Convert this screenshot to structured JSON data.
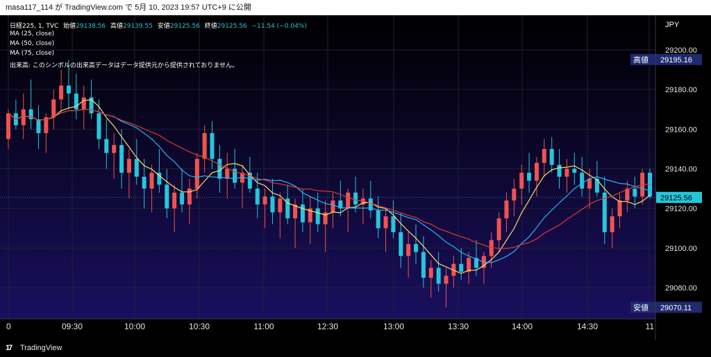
{
  "header": {
    "caption": "masa117_114 が TradingView.com で 5月 10, 2023 19:57 UTC+9 に公開"
  },
  "legend": {
    "symbol": "日経225, 1, TVC",
    "open_label": "始値",
    "open_value": "29138.56",
    "high_label": "高値",
    "high_value": "29139.55",
    "low_label": "安値",
    "low_value": "29125.56",
    "close_label": "終値",
    "close_value": "29125.56",
    "change": "−11.54 (−0.04%)",
    "ma1": "MA (25, close)",
    "ma2": "MA (50, close)",
    "ma3": "MA (75, close)",
    "volume_note": "出来高: このシンボルの出来高データはデータ提供元から提供されておりません。"
  },
  "price_scale": {
    "currency": "JPY",
    "ticks": [
      "29200.00",
      "29180.00",
      "29160.00",
      "29140.00",
      "29120.00",
      "29100.00",
      "29080.00"
    ],
    "high_label": "高値",
    "high_value": "29195.16",
    "low_label": "安値",
    "low_value": "29070.11",
    "last_value": "29125.56"
  },
  "time_scale": {
    "ticks": [
      "0",
      "09:30",
      "10:00",
      "10:30",
      "11:00",
      "12:30",
      "13:00",
      "13:30",
      "14:00",
      "14:30",
      "11"
    ]
  },
  "footer": {
    "brand": "TradingView"
  },
  "colors": {
    "up": "#ef5350",
    "down": "#26c6da",
    "bg_top": "#000000",
    "bg_bottom": "#1a0f5e",
    "ma25": "#ffe066",
    "ma50": "#29b6f6",
    "ma75": "#e53935",
    "text": "#ffffff",
    "last_price_bg": "#26c6da",
    "last_price_text": "#000000",
    "hl_bg": "#1e2a6e"
  },
  "chart_data": {
    "type": "candlestick",
    "instrument": "日経225, 1, TVC",
    "currency": "JPY",
    "ylim": [
      29065,
      29212
    ],
    "grid": true,
    "x_ticks": [
      "0",
      "09:30",
      "10:00",
      "10:30",
      "11:00",
      "12:30",
      "13:00",
      "13:30",
      "14:00",
      "14:30",
      "11"
    ],
    "last": {
      "open": 29138.56,
      "high": 29139.55,
      "low": 29125.56,
      "close": 29125.56,
      "change": -11.54,
      "change_pct": -0.04
    },
    "session_high": 29195.16,
    "session_low": 29070.11,
    "candles_ohlc_approx": [
      [
        29155,
        29170,
        29150,
        29168
      ],
      [
        29168,
        29175,
        29160,
        29162
      ],
      [
        29162,
        29178,
        29155,
        29170
      ],
      [
        29170,
        29185,
        29160,
        29165
      ],
      [
        29165,
        29172,
        29150,
        29158
      ],
      [
        29158,
        29168,
        29148,
        29166
      ],
      [
        29166,
        29180,
        29160,
        29175
      ],
      [
        29175,
        29190,
        29168,
        29182
      ],
      [
        29182,
        29195,
        29170,
        29178
      ],
      [
        29178,
        29188,
        29165,
        29170
      ],
      [
        29170,
        29182,
        29160,
        29176
      ],
      [
        29176,
        29185,
        29165,
        29168
      ],
      [
        29168,
        29175,
        29150,
        29155
      ],
      [
        29155,
        29165,
        29140,
        29148
      ],
      [
        29148,
        29158,
        29135,
        29152
      ],
      [
        29152,
        29160,
        29130,
        29138
      ],
      [
        29138,
        29150,
        29125,
        29145
      ],
      [
        29145,
        29155,
        29132,
        29136
      ],
      [
        29136,
        29145,
        29120,
        29130
      ],
      [
        29130,
        29142,
        29118,
        29138
      ],
      [
        29138,
        29150,
        29128,
        29132
      ],
      [
        29132,
        29140,
        29115,
        29120
      ],
      [
        29120,
        29132,
        29108,
        29128
      ],
      [
        29128,
        29140,
        29118,
        29122
      ],
      [
        29122,
        29135,
        29112,
        29130
      ],
      [
        29130,
        29148,
        29125,
        29145
      ],
      [
        29145,
        29162,
        29138,
        29158
      ],
      [
        29158,
        29164,
        29140,
        29145
      ],
      [
        29145,
        29152,
        29128,
        29135
      ],
      [
        29135,
        29148,
        29125,
        29140
      ],
      [
        29140,
        29150,
        29130,
        29133
      ],
      [
        29133,
        29142,
        29120,
        29138
      ],
      [
        29138,
        29146,
        29128,
        29130
      ],
      [
        29130,
        29138,
        29115,
        29122
      ],
      [
        29122,
        29130,
        29110,
        29126
      ],
      [
        29126,
        29135,
        29112,
        29118
      ],
      [
        29118,
        29128,
        29105,
        29125
      ],
      [
        29125,
        29132,
        29112,
        29115
      ],
      [
        29115,
        29125,
        29100,
        29122
      ],
      [
        29122,
        29130,
        29108,
        29113
      ],
      [
        29113,
        29126,
        29102,
        29120
      ],
      [
        29120,
        29128,
        29108,
        29112
      ],
      [
        29112,
        29124,
        29098,
        29118
      ],
      [
        29118,
        29128,
        29110,
        29124
      ],
      [
        29124,
        29134,
        29116,
        29120
      ],
      [
        29120,
        29130,
        29108,
        29128
      ],
      [
        29128,
        29136,
        29118,
        29122
      ],
      [
        29122,
        29130,
        29112,
        29125
      ],
      [
        29125,
        29134,
        29115,
        29119
      ],
      [
        29119,
        29126,
        29105,
        29110
      ],
      [
        29110,
        29120,
        29098,
        29116
      ],
      [
        29116,
        29124,
        29105,
        29108
      ],
      [
        29108,
        29118,
        29090,
        29096
      ],
      [
        29096,
        29108,
        29085,
        29102
      ],
      [
        29102,
        29112,
        29092,
        29098
      ],
      [
        29098,
        29106,
        29080,
        29085
      ],
      [
        29085,
        29094,
        29075,
        29090
      ],
      [
        29090,
        29098,
        29078,
        29082
      ],
      [
        29082,
        29090,
        29070,
        29086
      ],
      [
        29086,
        29096,
        29080,
        29092
      ],
      [
        29092,
        29100,
        29084,
        29088
      ],
      [
        29088,
        29098,
        29082,
        29095
      ],
      [
        29095,
        29104,
        29086,
        29090
      ],
      [
        29090,
        29098,
        29082,
        29096
      ],
      [
        29096,
        29108,
        29090,
        29104
      ],
      [
        29104,
        29118,
        29098,
        29115
      ],
      [
        29115,
        29128,
        29108,
        29124
      ],
      [
        29124,
        29135,
        29116,
        29130
      ],
      [
        29130,
        29142,
        29122,
        29138
      ],
      [
        29138,
        29148,
        29128,
        29134
      ],
      [
        29134,
        29146,
        29126,
        29143
      ],
      [
        29143,
        29155,
        29136,
        29150
      ],
      [
        29150,
        29156,
        29138,
        29142
      ],
      [
        29142,
        29150,
        29130,
        29136
      ],
      [
        29136,
        29145,
        29128,
        29140
      ],
      [
        29140,
        29148,
        29132,
        29138
      ],
      [
        29138,
        29146,
        29126,
        29130
      ],
      [
        29130,
        29140,
        29120,
        29135
      ],
      [
        29135,
        29144,
        29126,
        29128
      ],
      [
        29128,
        29136,
        29102,
        29108
      ],
      [
        29108,
        29120,
        29100,
        29116
      ],
      [
        29116,
        29128,
        29110,
        29124
      ],
      [
        29124,
        29134,
        29118,
        29130
      ],
      [
        29130,
        29136,
        29120,
        29126
      ],
      [
        29126,
        29140,
        29122,
        29138
      ],
      [
        29138,
        29140,
        29125,
        29126
      ]
    ],
    "series": [
      {
        "name": "MA (25, close)",
        "type": "line"
      },
      {
        "name": "MA (50, close)",
        "type": "line"
      },
      {
        "name": "MA (75, close)",
        "type": "line"
      }
    ]
  }
}
